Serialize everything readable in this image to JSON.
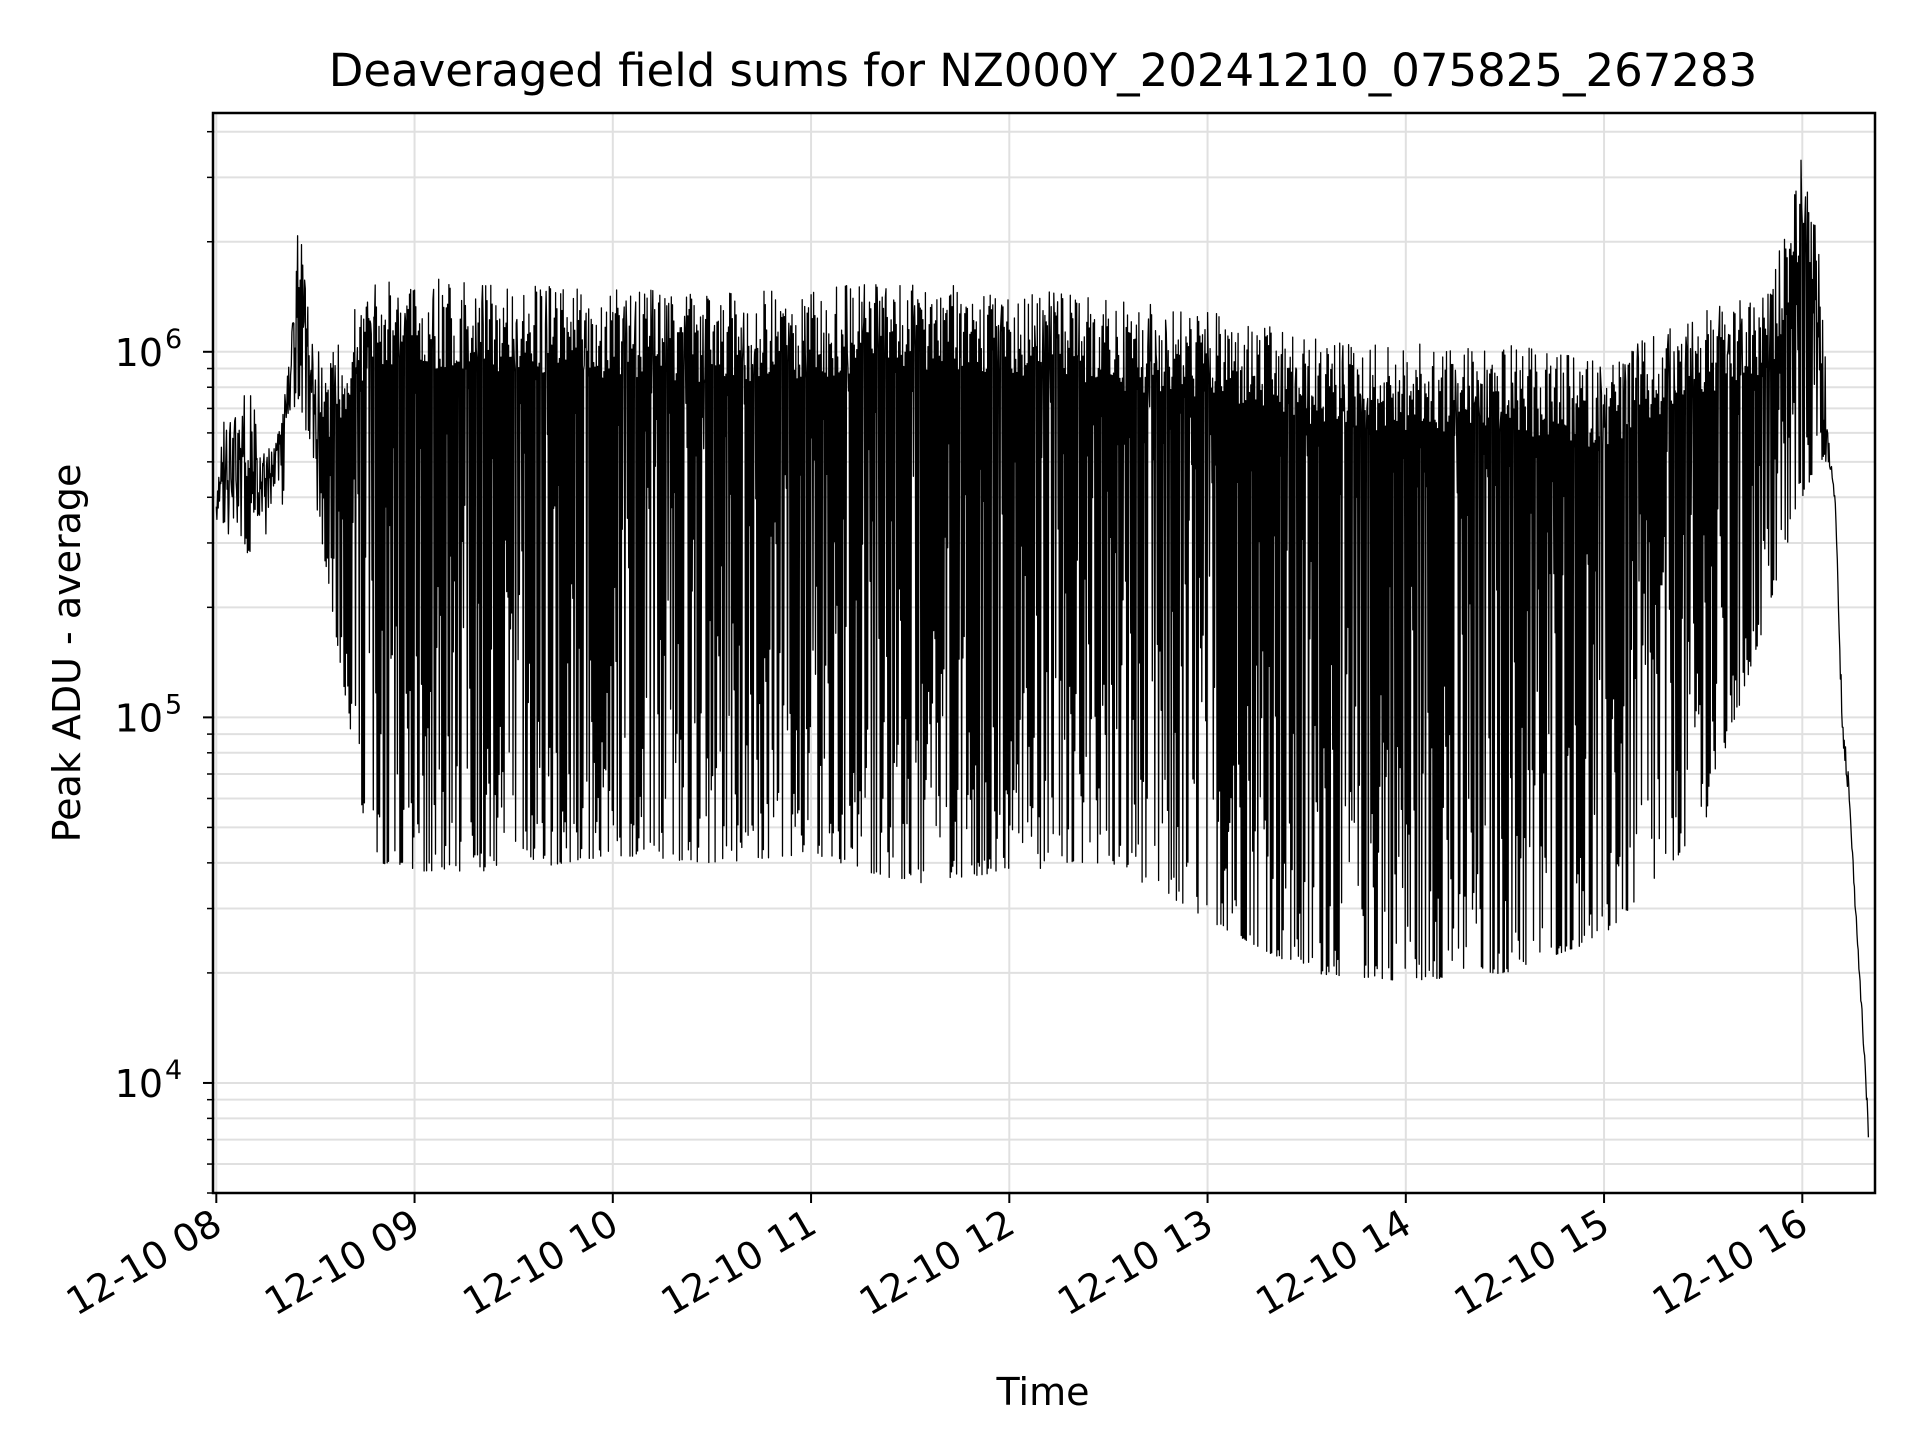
{
  "chart_data": {
    "type": "line",
    "title": "Deaveraged field sums for NZ000Y_20241210_075825_267283",
    "xlabel": "Time",
    "ylabel": "Peak ADU - average",
    "yscale": "log",
    "grid": true,
    "line_color": "#000000",
    "grid_color": "#e0e0e0",
    "xlim": [
      "2024-12-10 07:59",
      "2024-12-10 16:22"
    ],
    "ylim": [
      5000,
      4500000
    ],
    "x_ticks": [
      {
        "value": "2024-12-10 08:00",
        "label": "12-10 08"
      },
      {
        "value": "2024-12-10 09:00",
        "label": "12-10 09"
      },
      {
        "value": "2024-12-10 10:00",
        "label": "12-10 10"
      },
      {
        "value": "2024-12-10 11:00",
        "label": "12-10 11"
      },
      {
        "value": "2024-12-10 12:00",
        "label": "12-10 12"
      },
      {
        "value": "2024-12-10 13:00",
        "label": "12-10 13"
      },
      {
        "value": "2024-12-10 14:00",
        "label": "12-10 14"
      },
      {
        "value": "2024-12-10 15:00",
        "label": "12-10 15"
      },
      {
        "value": "2024-12-10 16:00",
        "label": "12-10 16"
      }
    ],
    "y_ticks": [
      {
        "value": 10000,
        "base": "10",
        "exp": "4"
      },
      {
        "value": 100000,
        "base": "10",
        "exp": "5"
      },
      {
        "value": 1000000,
        "base": "10",
        "exp": "6"
      }
    ],
    "envelope": {
      "time": [
        "2024-12-10 08:00",
        "2024-12-10 08:05",
        "2024-12-10 08:10",
        "2024-12-10 08:15",
        "2024-12-10 08:20",
        "2024-12-10 08:25",
        "2024-12-10 08:30",
        "2024-12-10 08:35",
        "2024-12-10 08:40",
        "2024-12-10 08:45",
        "2024-12-10 08:50",
        "2024-12-10 09:00",
        "2024-12-10 09:30",
        "2024-12-10 10:00",
        "2024-12-10 10:30",
        "2024-12-10 11:00",
        "2024-12-10 11:30",
        "2024-12-10 12:00",
        "2024-12-10 12:30",
        "2024-12-10 13:00",
        "2024-12-10 13:30",
        "2024-12-10 14:00",
        "2024-12-10 14:30",
        "2024-12-10 15:00",
        "2024-12-10 15:30",
        "2024-12-10 15:50",
        "2024-12-10 16:00",
        "2024-12-10 16:05",
        "2024-12-10 16:08",
        "2024-12-10 16:10",
        "2024-12-10 16:12",
        "2024-12-10 16:14",
        "2024-12-10 16:16",
        "2024-12-10 16:18",
        "2024-12-10 16:20"
      ],
      "peak_high": [
        600000,
        700000,
        800000,
        550000,
        650000,
        2300000,
        1000000,
        1000000,
        1200000,
        1500000,
        1600000,
        1600000,
        1550000,
        1500000,
        1450000,
        1500000,
        1550000,
        1500000,
        1400000,
        1300000,
        1100000,
        1050000,
        1050000,
        950000,
        1300000,
        1450000,
        3500000,
        2000000,
        650000,
        400000,
        150000,
        80000,
        35000,
        18000,
        9000
      ],
      "trough_low": [
        350000,
        300000,
        280000,
        420000,
        600000,
        750000,
        400000,
        200000,
        100000,
        50000,
        40000,
        38000,
        38000,
        42000,
        40000,
        42000,
        35000,
        38000,
        40000,
        28000,
        20000,
        19000,
        20000,
        25000,
        50000,
        200000,
        400000,
        500000,
        500000,
        380000,
        90000,
        60000,
        30000,
        15000,
        7000
      ]
    }
  }
}
